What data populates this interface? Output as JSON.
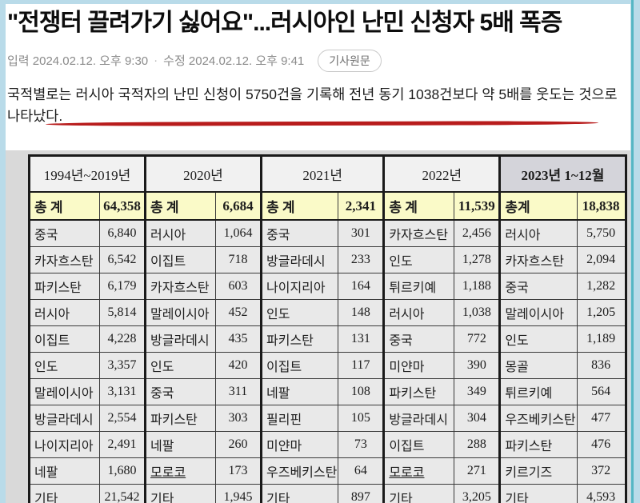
{
  "article": {
    "title": "\"전쟁터 끌려가기 싫어요\"...러시아인 난민 신청자 5배 폭증",
    "meta": {
      "published": "입력 2024.02.12. 오후 9:30",
      "separator": "·",
      "modified": "수정 2024.02.12. 오후 9:41",
      "source_button": "기사원문"
    },
    "body": {
      "prefix": "국적별로는 ",
      "underlined": "러시아 국적자의 난민 신청이 5750건을 기록해 전년 동기 1038건보다 약 5배를",
      "suffix": " 웃도는 것으로 나타났다."
    }
  },
  "table": {
    "groups": [
      {
        "year": "1994년~2019년",
        "total_label": "총  계",
        "total": "64,358",
        "rows": [
          [
            "중국",
            "6,840"
          ],
          [
            "카자흐스탄",
            "6,542"
          ],
          [
            "파키스탄",
            "6,179"
          ],
          [
            "러시아",
            "5,814"
          ],
          [
            "이집트",
            "4,228"
          ],
          [
            "인도",
            "3,357"
          ],
          [
            "말레이시아",
            "3,131"
          ],
          [
            "방글라데시",
            "2,554"
          ],
          [
            "나이지리아",
            "2,491"
          ],
          [
            "네팔",
            "1,680"
          ],
          [
            "기타",
            "21,542"
          ]
        ]
      },
      {
        "year": "2020년",
        "total_label": "총  계",
        "total": "6,684",
        "rows": [
          [
            "러시아",
            "1,064"
          ],
          [
            "이집트",
            "718"
          ],
          [
            "카자흐스탄",
            "603"
          ],
          [
            "말레이시아",
            "452"
          ],
          [
            "방글라데시",
            "435"
          ],
          [
            "인도",
            "420"
          ],
          [
            "중국",
            "311"
          ],
          [
            "파키스탄",
            "303"
          ],
          [
            "네팔",
            "260"
          ],
          [
            "모로코",
            "173",
            true
          ],
          [
            "기타",
            "1,945"
          ]
        ]
      },
      {
        "year": "2021년",
        "total_label": "총  계",
        "total": "2,341",
        "rows": [
          [
            "중국",
            "301"
          ],
          [
            "방글라데시",
            "233"
          ],
          [
            "나이지리아",
            "164"
          ],
          [
            "인도",
            "148"
          ],
          [
            "파키스탄",
            "131"
          ],
          [
            "이집트",
            "117"
          ],
          [
            "네팔",
            "108"
          ],
          [
            "필리핀",
            "105"
          ],
          [
            "미얀마",
            "73"
          ],
          [
            "우즈베키스탄",
            "64"
          ],
          [
            "기타",
            "897"
          ]
        ]
      },
      {
        "year": "2022년",
        "total_label": "총  계",
        "total": "11,539",
        "rows": [
          [
            "카자흐스탄",
            "2,456"
          ],
          [
            "인도",
            "1,278"
          ],
          [
            "튀르키예",
            "1,188"
          ],
          [
            "러시아",
            "1,038"
          ],
          [
            "중국",
            "772"
          ],
          [
            "미얀마",
            "390"
          ],
          [
            "파키스탄",
            "349"
          ],
          [
            "방글라데시",
            "304"
          ],
          [
            "이집트",
            "288"
          ],
          [
            "모로코",
            "271",
            true
          ],
          [
            "기타",
            "3,205"
          ]
        ]
      },
      {
        "year": "2023년 1~12월",
        "total_label": "총계",
        "total": "18,838",
        "rows": [
          [
            "러시아",
            "5,750"
          ],
          [
            "카자흐스탄",
            "2,094"
          ],
          [
            "중국",
            "1,282"
          ],
          [
            "말레이시아",
            "1,205"
          ],
          [
            "인도",
            "1,189"
          ],
          [
            "몽골",
            "836"
          ],
          [
            "튀르키예",
            "564"
          ],
          [
            "우즈베키스탄",
            "477"
          ],
          [
            "파키스탄",
            "476"
          ],
          [
            "키르기즈",
            "372"
          ],
          [
            "기타",
            "4,593"
          ]
        ]
      }
    ]
  },
  "colors": {
    "accent_red": "#b81c1c",
    "frame_blue": "#b9dbe9",
    "teal_accent": "#56b6c4",
    "total_row_yellow": "#fafac8",
    "year_header_gray": "#f1f1f1",
    "year_header_2023": "#d4d4da",
    "cell_gray": "#e9e9e9",
    "scan_background": "#d9d9d9"
  }
}
